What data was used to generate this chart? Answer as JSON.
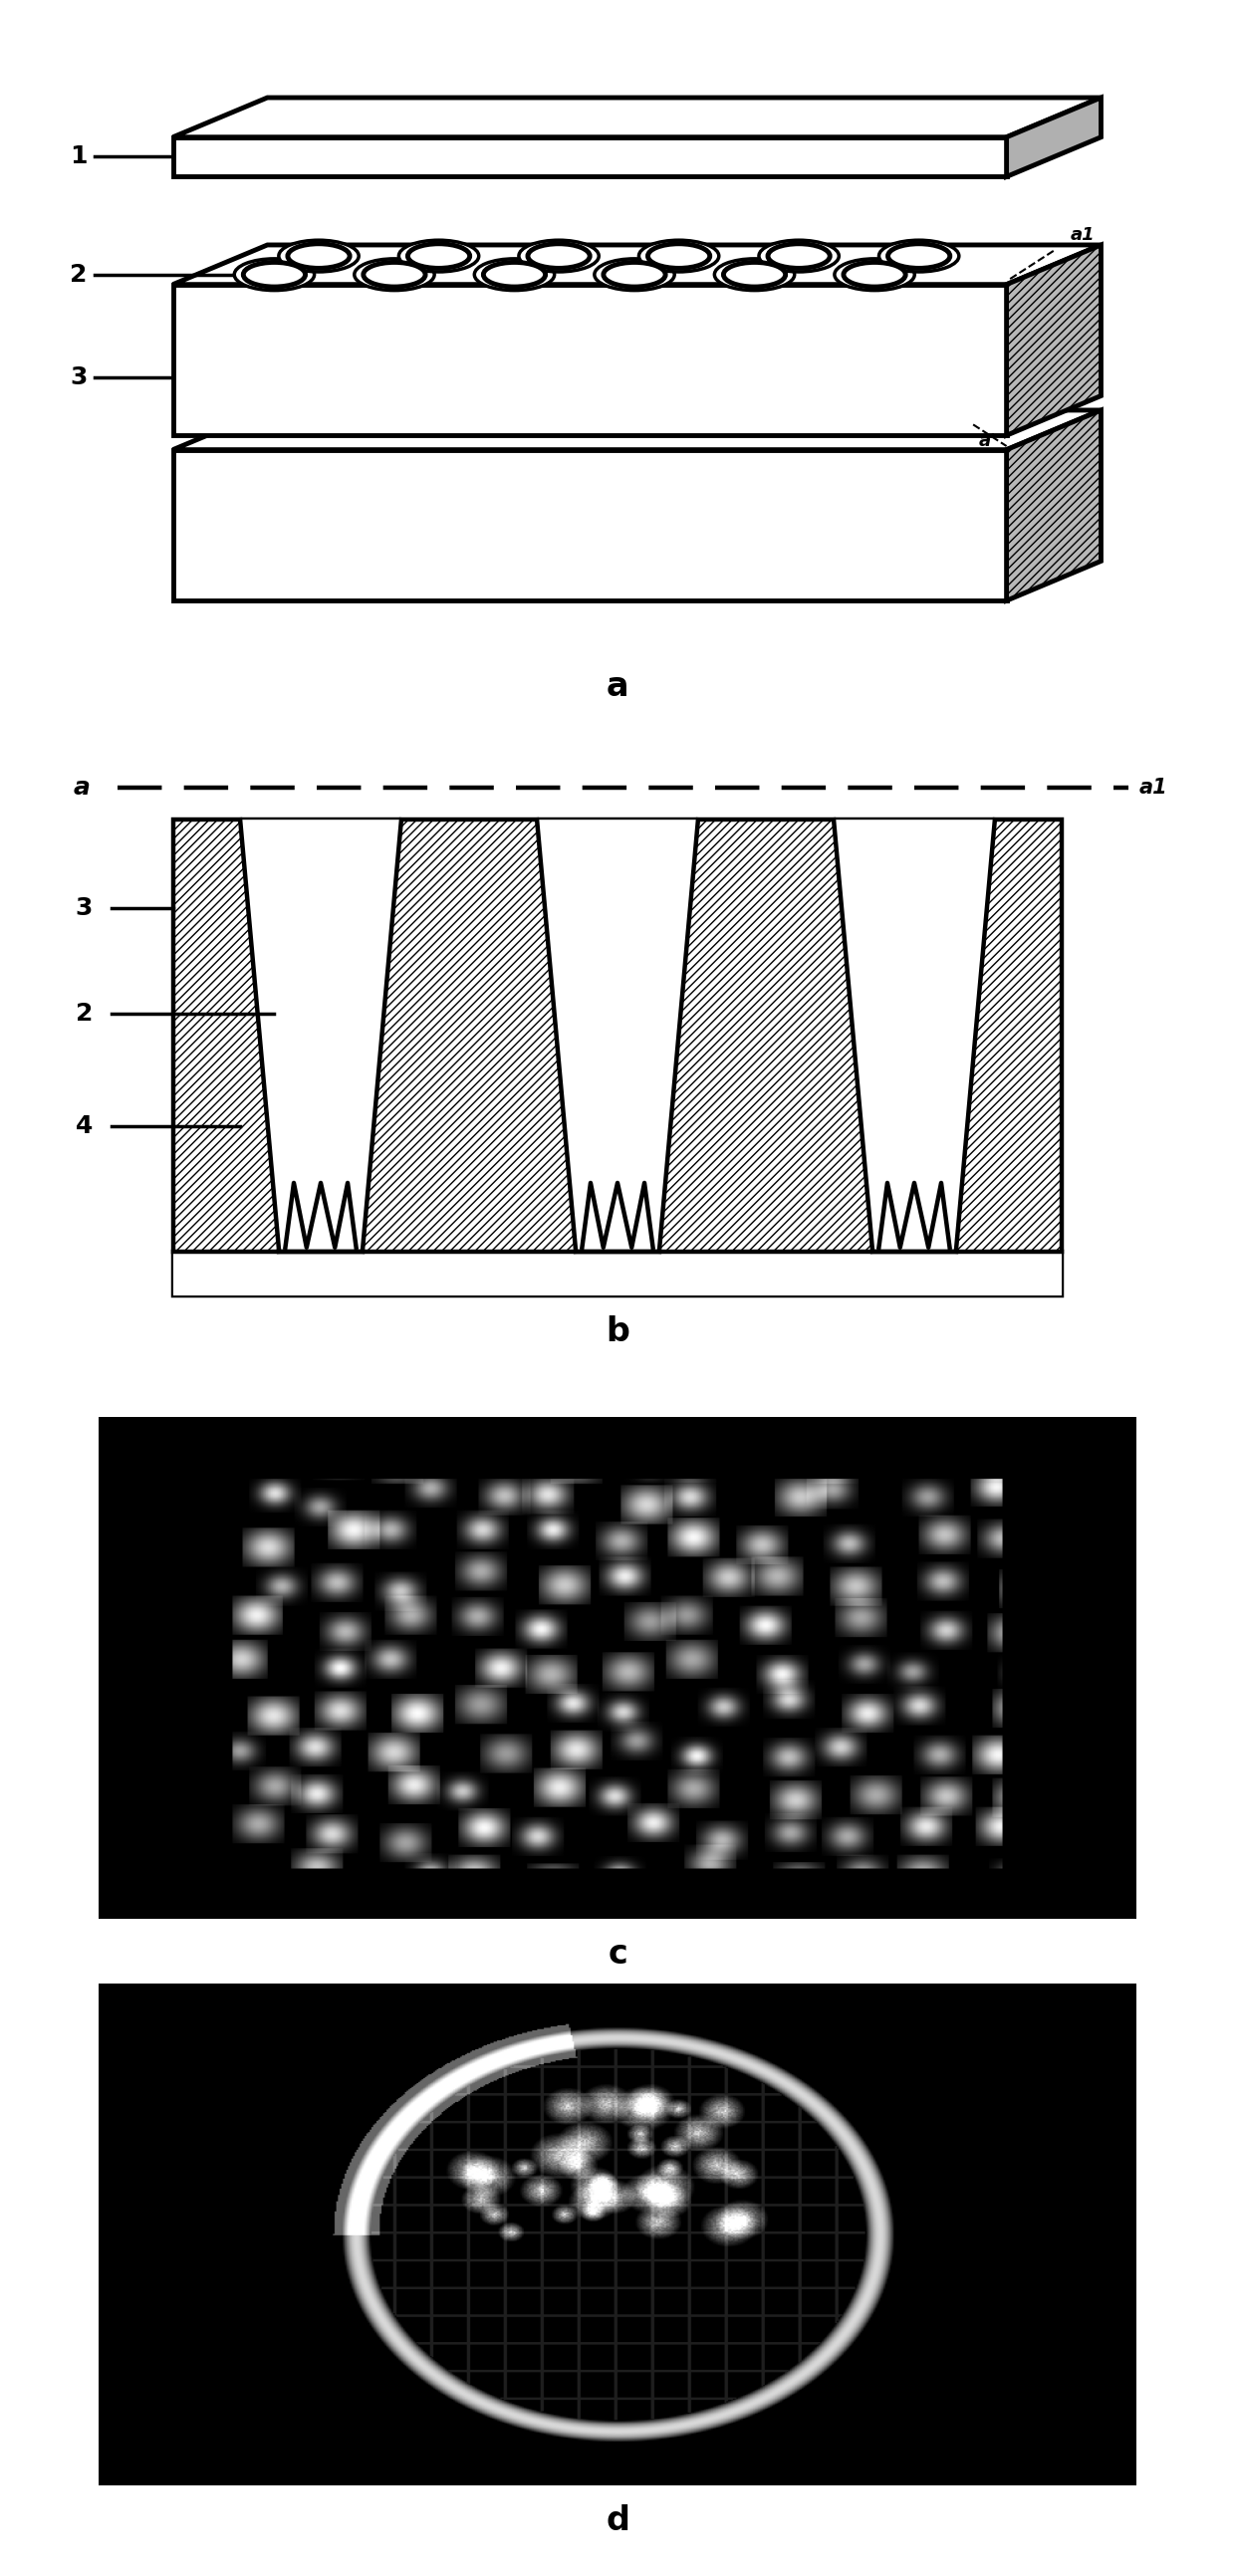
{
  "bg_color": "#ffffff",
  "panel_a_label": "a",
  "panel_b_label": "b",
  "panel_c_label": "c",
  "panel_d_label": "d",
  "label_1": "1",
  "label_2": "2",
  "label_3": "3",
  "label_4": "4",
  "font_size_panel": 20,
  "font_size_num": 18,
  "lw_thin": 1.5,
  "lw_mid": 2.5,
  "lw_thick": 3.5
}
